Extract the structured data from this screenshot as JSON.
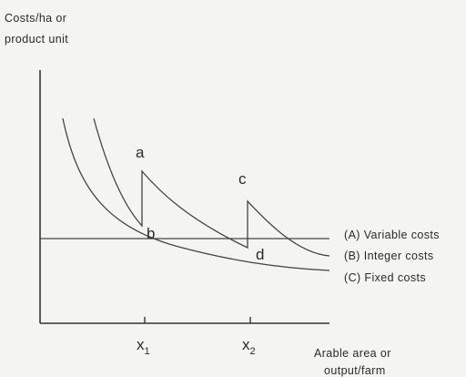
{
  "chart_data": {
    "type": "line",
    "title": "",
    "ylabel": [
      "Costs/ha or",
      "product unit"
    ],
    "xlabel": [
      "Arable area or",
      "output/farm"
    ],
    "x_ticks": [
      {
        "label": "x",
        "sub": "1"
      },
      {
        "label": "x",
        "sub": "2"
      }
    ],
    "point_labels": [
      "a",
      "b",
      "c",
      "d"
    ],
    "series": [
      {
        "name": "(A) Variable costs"
      },
      {
        "name": "(B) Integer costs"
      },
      {
        "name": "(C) Fixed costs"
      }
    ],
    "legend_position": "right",
    "grid": false,
    "axis_numbers_shown": false,
    "line_color": "#444444"
  }
}
